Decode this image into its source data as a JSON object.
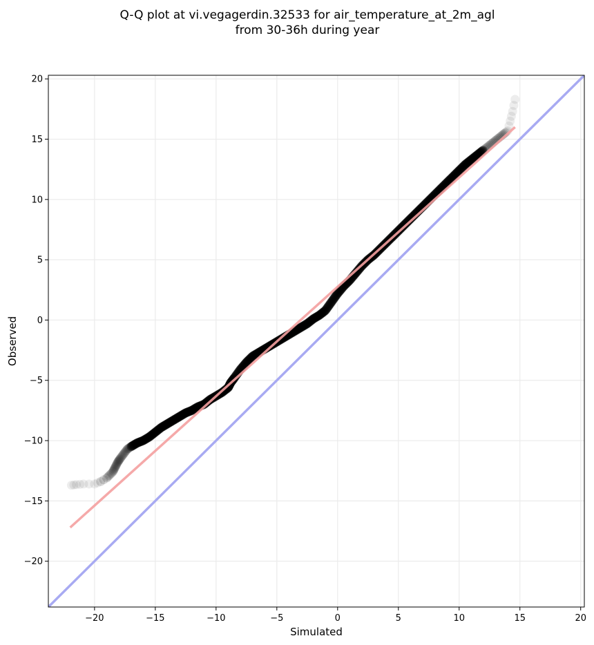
{
  "chart_data": {
    "type": "scatter",
    "title_line1": "Q-Q plot at vi.vegagerdin.32533 for air_temperature_at_2m_agl",
    "title_line2": "from 30-36h during year",
    "xlabel": "Simulated",
    "ylabel": "Observed",
    "xlim": [
      -23.8,
      20.3
    ],
    "ylim": [
      -23.8,
      20.3
    ],
    "xticks": [
      -20,
      -15,
      -10,
      -5,
      0,
      5,
      10,
      15,
      20
    ],
    "yticks": [
      -20,
      -15,
      -10,
      -5,
      0,
      5,
      10,
      15,
      20
    ],
    "xtick_labels": [
      "−20",
      "−15",
      "−10",
      "−5",
      "0",
      "5",
      "10",
      "15",
      "20"
    ],
    "ytick_labels": [
      "−20",
      "−15",
      "−10",
      "−5",
      "0",
      "5",
      "10",
      "15",
      "20"
    ],
    "grid": true,
    "colors": {
      "points": "#000000",
      "fit_line": "#f4a0a0",
      "identity_line": "#a8aaf2",
      "grid": "#ebebeb"
    },
    "identity_line": {
      "x": [
        -23.8,
        20.3
      ],
      "y": [
        -23.8,
        20.3
      ]
    },
    "fit_line": {
      "x": [
        -22.0,
        14.6
      ],
      "y": [
        -17.2,
        16.0
      ]
    },
    "quantiles": {
      "x": [
        -21.9,
        -21.5,
        -20.9,
        -20.0,
        -19.5,
        -19.0,
        -18.5,
        -18.3,
        -18.1,
        -17.9,
        -17.6,
        -17.3,
        -17.0,
        -16.5,
        -16.0,
        -15.5,
        -15.0,
        -14.5,
        -14.0,
        -13.5,
        -13.0,
        -12.5,
        -12.0,
        -11.5,
        -11.0,
        -10.5,
        -10.0,
        -9.5,
        -9.0,
        -8.8,
        -8.5,
        -8.0,
        -7.5,
        -7.0,
        -6.5,
        -6.0,
        -5.5,
        -5.0,
        -4.5,
        -4.0,
        -3.5,
        -3.0,
        -2.5,
        -2.0,
        -1.5,
        -1.0,
        -0.5,
        0.0,
        0.5,
        1.0,
        1.5,
        2.0,
        2.5,
        3.0,
        3.5,
        4.0,
        4.5,
        5.0,
        5.5,
        6.0,
        6.5,
        7.0,
        7.5,
        8.0,
        8.5,
        9.0,
        9.5,
        10.0,
        10.5,
        11.0,
        11.5,
        12.0,
        12.5,
        13.0,
        13.5,
        14.0,
        14.2,
        14.4,
        14.6
      ],
      "y": [
        -13.7,
        -13.65,
        -13.6,
        -13.6,
        -13.4,
        -13.1,
        -12.6,
        -12.2,
        -11.8,
        -11.5,
        -11.1,
        -10.7,
        -10.5,
        -10.2,
        -10.0,
        -9.7,
        -9.3,
        -8.9,
        -8.6,
        -8.3,
        -8.0,
        -7.7,
        -7.5,
        -7.2,
        -7.0,
        -6.6,
        -6.3,
        -6.0,
        -5.6,
        -5.2,
        -4.8,
        -4.1,
        -3.5,
        -3.0,
        -2.7,
        -2.4,
        -2.1,
        -1.8,
        -1.5,
        -1.2,
        -0.9,
        -0.6,
        -0.3,
        0.1,
        0.4,
        0.8,
        1.5,
        2.2,
        2.8,
        3.3,
        3.9,
        4.5,
        5.0,
        5.4,
        5.9,
        6.4,
        6.9,
        7.4,
        7.9,
        8.4,
        8.9,
        9.4,
        9.9,
        10.4,
        10.9,
        11.4,
        11.9,
        12.4,
        12.9,
        13.3,
        13.7,
        14.1,
        14.5,
        14.9,
        15.3,
        15.7,
        16.5,
        17.3,
        18.3
      ]
    }
  }
}
